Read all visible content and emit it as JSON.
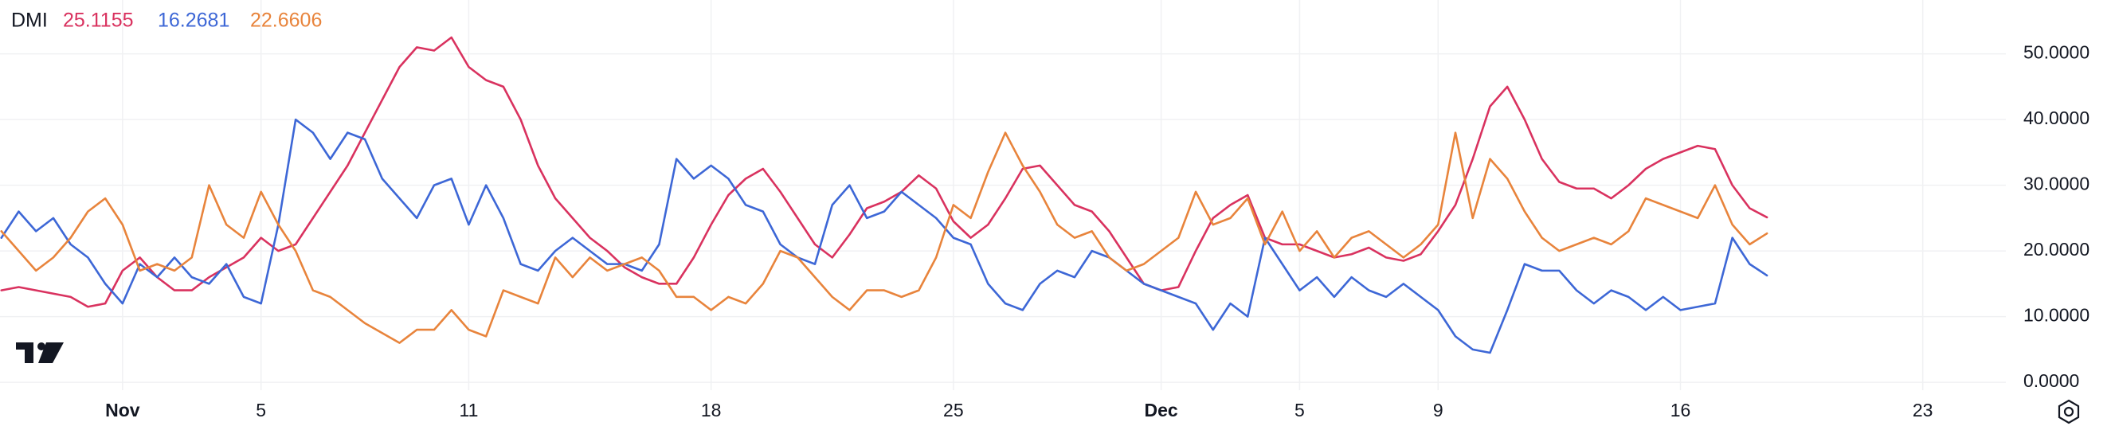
{
  "chart_data": {
    "type": "line",
    "title": "DMI",
    "x": [
      -3.5,
      -3,
      -2.5,
      -2,
      -1.5,
      -1,
      -0.5,
      0,
      0.5,
      1,
      1.5,
      2,
      2.5,
      3,
      3.5,
      4,
      4.5,
      5,
      5.5,
      6,
      6.5,
      7,
      7.5,
      8,
      8.5,
      9,
      9.5,
      10,
      10.5,
      11,
      11.5,
      12,
      12.5,
      13,
      13.5,
      14,
      14.5,
      15,
      15.5,
      16,
      16.5,
      17,
      17.5,
      18,
      18.5,
      19,
      19.5,
      20,
      20.5,
      21,
      21.5,
      22,
      22.5,
      23,
      23.5,
      24,
      24.5,
      25,
      25.5,
      26,
      26.5,
      27,
      27.5,
      28,
      28.5,
      29,
      29.5,
      30,
      30.5,
      31,
      31.5,
      32,
      32.5,
      33,
      33.5,
      34,
      34.5,
      35,
      35.5,
      36,
      36.5,
      37,
      37.5,
      38,
      38.5,
      39,
      39.5,
      40,
      40.5,
      41,
      41.5,
      42,
      42.5,
      43,
      43.5,
      44,
      44.5,
      45,
      45.5,
      46,
      46.5,
      47,
      47.5
    ],
    "series": [
      {
        "color": "#d9325f",
        "values": [
          14,
          14.5,
          14,
          13.5,
          13,
          11.5,
          12,
          17,
          19,
          16,
          14,
          14,
          16,
          17.5,
          19,
          22,
          20,
          21,
          25,
          29,
          33,
          38,
          43,
          48,
          51,
          50.5,
          52.5,
          48,
          46,
          45,
          40,
          33,
          28,
          25,
          22,
          20,
          17.5,
          16,
          15,
          15,
          19,
          24,
          28.5,
          31,
          32.5,
          29,
          25,
          21,
          19,
          22.5,
          26.5,
          27.5,
          29,
          31.5,
          29.5,
          24.5,
          22,
          24,
          28,
          32.5,
          33,
          30,
          27,
          26,
          23,
          19,
          15,
          14,
          14.5,
          20,
          25,
          27,
          28.5,
          22,
          21,
          21,
          20,
          19,
          19.5,
          20.5,
          19,
          18.5,
          19.5,
          23,
          27,
          34,
          42,
          45,
          40,
          34,
          30.5,
          29.5,
          29.5,
          28,
          30,
          32.5,
          34,
          35,
          36,
          35.5,
          30,
          26.5,
          25.1155
        ]
      },
      {
        "color": "#3d67d6",
        "values": [
          22,
          26,
          23,
          25,
          21,
          19,
          15,
          12,
          18,
          16,
          19,
          16,
          15,
          18,
          13,
          12,
          24,
          40,
          38,
          34,
          38,
          37,
          31,
          28,
          25,
          30,
          31,
          24,
          30,
          25,
          18,
          17,
          20,
          22,
          20,
          18,
          18,
          17,
          21,
          34,
          31,
          33,
          31,
          27,
          26,
          21,
          19,
          18,
          27,
          30,
          25,
          26,
          29,
          27,
          25,
          22,
          21,
          15,
          12,
          11,
          15,
          17,
          16,
          20,
          19,
          17,
          15,
          14,
          13,
          12,
          8,
          12,
          10,
          22,
          18,
          14,
          16,
          13,
          16,
          14,
          13,
          15,
          13,
          11,
          7,
          5,
          4.5,
          11,
          18,
          17,
          17,
          14,
          12,
          14,
          13,
          11,
          13,
          11,
          11.5,
          12,
          22,
          18,
          16.2681
        ]
      },
      {
        "color": "#e8843c",
        "values": [
          23,
          20,
          17,
          19,
          22,
          26,
          28,
          24,
          17,
          18,
          17,
          19,
          30,
          24,
          22,
          29,
          24,
          20,
          14,
          13,
          11,
          9,
          7.5,
          6,
          8,
          8,
          11,
          8,
          7,
          14,
          13,
          12,
          19,
          16,
          19,
          17,
          18,
          19,
          17,
          13,
          13,
          11,
          13,
          12,
          15,
          20,
          19,
          16,
          13,
          11,
          14,
          14,
          13,
          14,
          19,
          27,
          25,
          32,
          38,
          33,
          29,
          24,
          22,
          23,
          19,
          17,
          18,
          20,
          22,
          29,
          24,
          25,
          28,
          21,
          26,
          20,
          23,
          19,
          22,
          23,
          21,
          19,
          21,
          24,
          38,
          25,
          34,
          31,
          26,
          22,
          20,
          21,
          22,
          21,
          23,
          28,
          27,
          26,
          25,
          30,
          24,
          21,
          22.6606
        ]
      }
    ],
    "xlim": [
      -3.54,
      54.4
    ],
    "xticks": [
      {
        "value": 0,
        "label": "Nov"
      },
      {
        "value": 4,
        "label": "5"
      },
      {
        "value": 10,
        "label": "11"
      },
      {
        "value": 17,
        "label": "18"
      },
      {
        "value": 24,
        "label": "25"
      },
      {
        "value": 30,
        "label": "Dec"
      },
      {
        "value": 34,
        "label": "5"
      },
      {
        "value": 38,
        "label": "9"
      },
      {
        "value": 45,
        "label": "16"
      },
      {
        "value": 52,
        "label": "23"
      }
    ],
    "ylim": [
      -1.2,
      58.2
    ],
    "yticks": [
      {
        "value": 0,
        "label": "0.0000"
      },
      {
        "value": 10,
        "label": "10.0000"
      },
      {
        "value": 20,
        "label": "20.0000"
      },
      {
        "value": 30,
        "label": "30.0000"
      },
      {
        "value": 40,
        "label": "40.0000"
      },
      {
        "value": 50,
        "label": "50.0000"
      }
    ],
    "grid": true
  }
}
